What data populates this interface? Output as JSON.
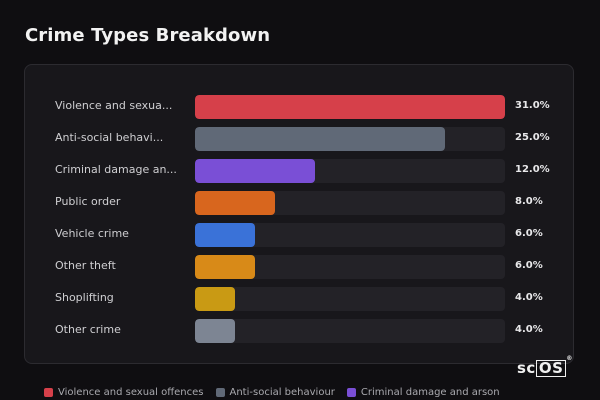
{
  "page": {
    "title": "Crime Types Breakdown"
  },
  "chart_data": {
    "type": "bar",
    "orientation": "horizontal",
    "title": "Crime Types Breakdown",
    "categories": [
      "Violence and sexua...",
      "Anti-social behavi...",
      "Criminal damage an...",
      "Public order",
      "Vehicle crime",
      "Other theft",
      "Shoplifting",
      "Other crime"
    ],
    "values": [
      31.0,
      25.0,
      12.0,
      8.0,
      6.0,
      6.0,
      4.0,
      4.0
    ],
    "value_labels": [
      "31.0%",
      "25.0%",
      "12.0%",
      "8.0%",
      "6.0%",
      "6.0%",
      "4.0%",
      "4.0%"
    ],
    "colors": [
      "#d6404a",
      "#606977",
      "#7a4fd6",
      "#d8661e",
      "#3a72d8",
      "#d88a18",
      "#c99a14",
      "#7d8593"
    ],
    "xlim": [
      0,
      31
    ],
    "legend": {
      "placement": "bottom",
      "entries": [
        {
          "label": "Violence and sexual offences",
          "color": "#d6404a"
        },
        {
          "label": "Anti-social behaviour",
          "color": "#606977"
        },
        {
          "label": "Criminal damage and arson",
          "color": "#7a4fd6"
        }
      ]
    }
  },
  "brand": {
    "logo_text_plain": "sc",
    "logo_text_boxed": "OS",
    "logo_mark": "®"
  }
}
